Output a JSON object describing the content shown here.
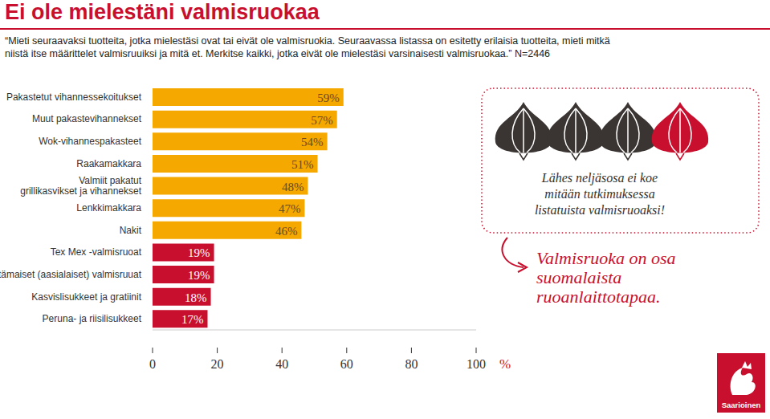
{
  "chart_data": {
    "type": "bar",
    "orientation": "horizontal",
    "title": "Ei ole mielestäni valmisruokaa",
    "subtitle": "“Mieti seuraavaksi tuotteita, jotka mielestäsi ovat tai eivät ole  valmisruokia. Seuraavassa listassa on esitetty erilaisia tuotteita, mieti mitkä niistä itse määrittelet valmisruuiksi ja mitä et. Merkitse kaikki, jotka eivät ole mielestäsi varsinaisesti valmisruokaa.” N=2446",
    "categories": [
      "Pakastetut vihannessekoitukset",
      "Muut pakastevihannekset",
      "Wok-vihannespakasteet",
      "Raakamakkara",
      "Valmiit pakatut grillikasvikset ja vihannekset",
      "Lenkkimakkara",
      "Nakit",
      "Tex Mex -valmisruoat",
      "Itämaiset (aasialaiset) valmisruuat",
      "Kasvislisukkeet ja gratiinit",
      "Peruna- ja riisilisukkeet"
    ],
    "values": [
      59,
      57,
      54,
      51,
      48,
      47,
      46,
      19,
      19,
      18,
      17
    ],
    "value_labels": [
      "59%",
      "57%",
      "54%",
      "51%",
      "48%",
      "47%",
      "46%",
      "19%",
      "19%",
      "18%",
      "17%"
    ],
    "colors": [
      "#f5a800",
      "#f5a800",
      "#f5a800",
      "#f5a800",
      "#f5a800",
      "#f5a800",
      "#f5a800",
      "#c8102e",
      "#c8102e",
      "#c8102e",
      "#c8102e"
    ],
    "xlim": [
      0,
      100
    ],
    "xticks": [
      0,
      20,
      40,
      60,
      80,
      100
    ],
    "xlabel": "%",
    "data_labels": true,
    "grid": false,
    "annotations": [
      "Lähes neljäsosa ei koe\nmitään tutkimuksessa\nlistatuista valmisruoaksi!",
      "Valmisruoka on osa suomalaista ruoanlaittotapaa.",
      "Saarioinen"
    ]
  }
}
